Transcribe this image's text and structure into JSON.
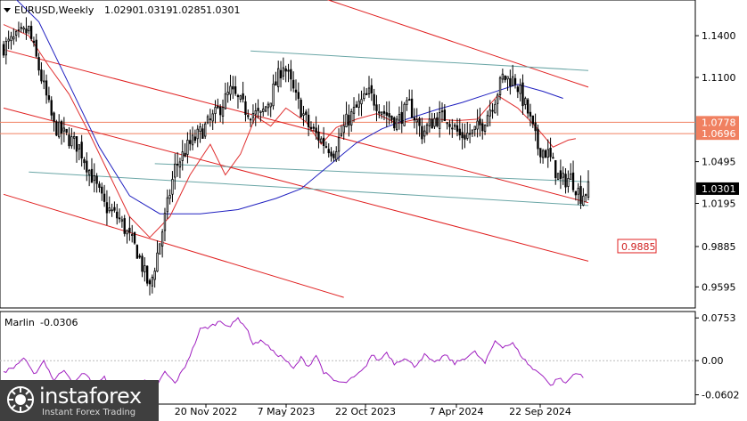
{
  "header": {
    "symbol": "EURUSD,Weekly",
    "open": "1.0290",
    "high": "1.0319",
    "low": "1.0285",
    "close": "1.0301"
  },
  "colors": {
    "candle": "#000000",
    "ma_short": "#e03030",
    "ma_long": "#2020c0",
    "channel": "#e02020",
    "teal_line": "#6aa6a6",
    "level_line": "#f08060",
    "oscillator": "#a020c0"
  },
  "chart_data": [
    {
      "type": "candlestick",
      "ylim": [
        0.945,
        1.165
      ],
      "y_ticks": [
        "1.1400",
        "1.1100",
        "1.0778",
        "1.0696",
        "1.0495",
        "1.0301",
        "1.0195",
        "0.9885",
        "0.9595"
      ],
      "x_ticks": [
        "20 Nov 2022",
        "7 May 2023",
        "22 Oct 2023",
        "7 Apr 2024",
        "22 Sep 2024"
      ],
      "current_price": "1.0301",
      "levels": [
        {
          "label": "1.0778",
          "value": 1.0778
        },
        {
          "label": "1.0696",
          "value": 1.0696
        }
      ],
      "target": {
        "label": "0.9885",
        "value": 0.9885
      },
      "anchors": [
        [
          0,
          1.132
        ],
        [
          10,
          1.144
        ],
        [
          20,
          1.075
        ],
        [
          30,
          1.06
        ],
        [
          40,
          1.018
        ],
        [
          46,
          1.008
        ],
        [
          53,
          0.985
        ],
        [
          58,
          0.958
        ],
        [
          63,
          1.0
        ],
        [
          68,
          1.045
        ],
        [
          73,
          1.06
        ],
        [
          78,
          1.07
        ],
        [
          84,
          1.083
        ],
        [
          90,
          1.1
        ],
        [
          96,
          1.087
        ],
        [
          102,
          1.082
        ],
        [
          106,
          1.096
        ],
        [
          111,
          1.12
        ],
        [
          116,
          1.095
        ],
        [
          121,
          1.075
        ],
        [
          127,
          1.063
        ],
        [
          131,
          1.057
        ],
        [
          136,
          1.078
        ],
        [
          141,
          1.09
        ],
        [
          145,
          1.098
        ],
        [
          151,
          1.085
        ],
        [
          156,
          1.078
        ],
        [
          161,
          1.09
        ],
        [
          166,
          1.07
        ],
        [
          171,
          1.08
        ],
        [
          176,
          1.082
        ],
        [
          181,
          1.068
        ],
        [
          186,
          1.07
        ],
        [
          190,
          1.077
        ],
        [
          195,
          1.095
        ],
        [
          198,
          1.11
        ],
        [
          203,
          1.108
        ],
        [
          208,
          1.085
        ],
        [
          212,
          1.06
        ],
        [
          216,
          1.055
        ],
        [
          221,
          1.035
        ],
        [
          225,
          1.038
        ],
        [
          229,
          1.025
        ],
        [
          232,
          1.03
        ]
      ],
      "ma_long": [
        [
          0,
          1.175
        ],
        [
          14,
          1.15
        ],
        [
          26,
          1.105
        ],
        [
          38,
          1.06
        ],
        [
          50,
          1.025
        ],
        [
          62,
          1.012
        ],
        [
          78,
          1.012
        ],
        [
          93,
          1.015
        ],
        [
          108,
          1.023
        ],
        [
          118,
          1.03
        ],
        [
          128,
          1.045
        ],
        [
          140,
          1.063
        ],
        [
          150,
          1.073
        ],
        [
          160,
          1.08
        ],
        [
          172,
          1.087
        ],
        [
          182,
          1.092
        ],
        [
          192,
          1.098
        ],
        [
          204,
          1.105
        ],
        [
          214,
          1.1
        ],
        [
          222,
          1.095
        ]
      ],
      "ma_short": [
        [
          0,
          1.148
        ],
        [
          10,
          1.14
        ],
        [
          18,
          1.118
        ],
        [
          26,
          1.098
        ],
        [
          34,
          1.07
        ],
        [
          42,
          1.04
        ],
        [
          50,
          1.01
        ],
        [
          58,
          0.995
        ],
        [
          66,
          1.01
        ],
        [
          74,
          1.04
        ],
        [
          82,
          1.062
        ],
        [
          88,
          1.04
        ],
        [
          94,
          1.055
        ],
        [
          100,
          1.082
        ],
        [
          106,
          1.075
        ],
        [
          112,
          1.088
        ],
        [
          120,
          1.078
        ],
        [
          126,
          1.062
        ],
        [
          132,
          1.074
        ],
        [
          140,
          1.08
        ],
        [
          148,
          1.084
        ],
        [
          156,
          1.077
        ],
        [
          164,
          1.08
        ],
        [
          172,
          1.08
        ],
        [
          180,
          1.079
        ],
        [
          188,
          1.08
        ],
        [
          196,
          1.097
        ],
        [
          204,
          1.088
        ],
        [
          212,
          1.073
        ],
        [
          218,
          1.06
        ],
        [
          224,
          1.065
        ],
        [
          227,
          1.066
        ]
      ],
      "channel_lines": [
        [
          [
            0,
            1.13
          ],
          [
            232,
            1.02
          ]
        ],
        [
          [
            0,
            1.088
          ],
          [
            232,
            0.978
          ]
        ],
        [
          [
            0,
            1.026
          ],
          [
            135,
            0.952
          ]
        ],
        [
          [
            125,
            1.168
          ],
          [
            232,
            1.103
          ]
        ]
      ],
      "teal_lines": [
        [
          [
            98,
            1.129
          ],
          [
            232,
            1.115
          ]
        ],
        [
          [
            10,
            1.042
          ],
          [
            232,
            1.018
          ]
        ],
        [
          [
            60,
            1.048
          ],
          [
            232,
            1.035
          ]
        ]
      ]
    },
    {
      "type": "line",
      "name": "Marlin",
      "value_label": "-0.0306",
      "ylim": [
        -0.075,
        0.085
      ],
      "y_ticks": [
        "0.0753",
        "0.00",
        "-0.0602"
      ],
      "anchors": [
        [
          0,
          -0.02
        ],
        [
          4,
          -0.012
        ],
        [
          8,
          0.005
        ],
        [
          12,
          -0.025
        ],
        [
          16,
          0.0
        ],
        [
          20,
          -0.035
        ],
        [
          24,
          -0.015
        ],
        [
          28,
          -0.04
        ],
        [
          32,
          -0.02
        ],
        [
          36,
          -0.045
        ],
        [
          40,
          -0.03
        ],
        [
          44,
          -0.055
        ],
        [
          48,
          -0.04
        ],
        [
          52,
          -0.06
        ],
        [
          56,
          -0.035
        ],
        [
          60,
          -0.05
        ],
        [
          64,
          -0.02
        ],
        [
          68,
          -0.04
        ],
        [
          72,
          -0.01
        ],
        [
          75,
          0.02
        ],
        [
          78,
          0.055
        ],
        [
          82,
          0.06
        ],
        [
          86,
          0.07
        ],
        [
          90,
          0.06
        ],
        [
          93,
          0.075
        ],
        [
          96,
          0.06
        ],
        [
          99,
          0.03
        ],
        [
          103,
          0.035
        ],
        [
          107,
          0.015
        ],
        [
          111,
          0.005
        ],
        [
          115,
          -0.015
        ],
        [
          118,
          0.005
        ],
        [
          121,
          -0.01
        ],
        [
          124,
          0.01
        ],
        [
          127,
          -0.02
        ],
        [
          131,
          -0.035
        ],
        [
          135,
          -0.04
        ],
        [
          139,
          -0.03
        ],
        [
          143,
          -0.015
        ],
        [
          146,
          0.01
        ],
        [
          149,
          0.0
        ],
        [
          152,
          0.015
        ],
        [
          155,
          -0.005
        ],
        [
          159,
          0.005
        ],
        [
          163,
          -0.01
        ],
        [
          167,
          0.01
        ],
        [
          171,
          -0.005
        ],
        [
          175,
          0.01
        ],
        [
          179,
          -0.005
        ],
        [
          183,
          0.005
        ],
        [
          187,
          0.015
        ],
        [
          191,
          -0.005
        ],
        [
          195,
          0.035
        ],
        [
          198,
          0.025
        ],
        [
          202,
          0.03
        ],
        [
          206,
          0.005
        ],
        [
          210,
          -0.015
        ],
        [
          214,
          -0.025
        ],
        [
          217,
          -0.045
        ],
        [
          220,
          -0.03
        ],
        [
          223,
          -0.04
        ],
        [
          227,
          -0.02
        ],
        [
          230,
          -0.03
        ]
      ]
    }
  ],
  "indicator": {
    "name": "Marlin",
    "value": "-0.0306"
  },
  "watermark": {
    "brand": "instaforex",
    "tagline": "Instant Forex Trading"
  }
}
